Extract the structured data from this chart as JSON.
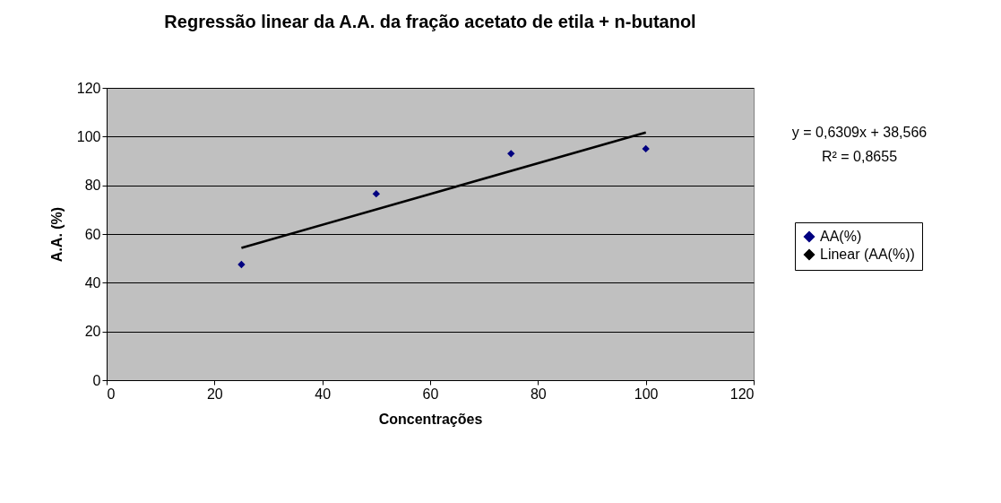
{
  "chart_data": {
    "type": "scatter",
    "title": "Regressão linear da A.A. da fração acetato de etila + n-butanol",
    "xlabel": "Concentrações",
    "ylabel": "A.A. (%)",
    "x": [
      25,
      50,
      75,
      100
    ],
    "series": [
      {
        "name": "AA(%)",
        "marker": "diamond",
        "color": "#000080",
        "values": [
          47.5,
          76.5,
          93,
          95
        ]
      },
      {
        "name": "Linear (AA(%))",
        "type": "line",
        "color": "#000000",
        "x": [
          25,
          100
        ],
        "values": [
          54.3,
          101.7
        ]
      }
    ],
    "annotations": [
      "y = 0,6309x + 38,566",
      "R² = 0,8655"
    ],
    "xlim": [
      0,
      120
    ],
    "xticks": [
      0,
      20,
      40,
      60,
      80,
      100,
      120
    ],
    "ylim": [
      0,
      120
    ],
    "yticks": [
      0,
      20,
      40,
      60,
      80,
      100,
      120
    ],
    "grid": "y",
    "legend": "right",
    "line_style": "solid"
  }
}
